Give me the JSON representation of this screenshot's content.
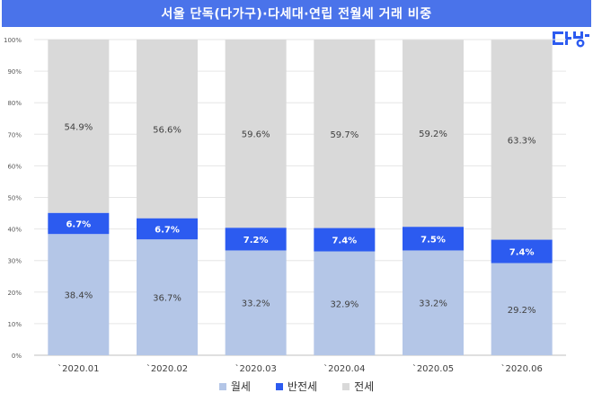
{
  "title": "서울 단독(다가구)·다세대·연립 전월세 거래 비중",
  "logo": {
    "text": "다방"
  },
  "colors": {
    "title_bg": "#4a73ea",
    "monthly": "#b4c6e7",
    "semi_jeonse": "#2c5bf0",
    "jeonse": "#d9d9d9"
  },
  "chart_data": {
    "type": "bar",
    "stacked": true,
    "percent": true,
    "categories": [
      "`2020.01",
      "`2020.02",
      "`2020.03",
      "`2020.04",
      "`2020.05",
      "`2020.06"
    ],
    "series": [
      {
        "name": "월세",
        "values": [
          38.4,
          36.7,
          33.2,
          32.9,
          33.2,
          29.2
        ],
        "labels": [
          "38.4%",
          "36.7%",
          "33.2%",
          "32.9%",
          "33.2%",
          "29.2%"
        ]
      },
      {
        "name": "반전세",
        "values": [
          6.7,
          6.7,
          7.2,
          7.4,
          7.5,
          7.4
        ],
        "labels": [
          "6.7%",
          "6.7%",
          "7.2%",
          "7.4%",
          "7.5%",
          "7.4%"
        ]
      },
      {
        "name": "전세",
        "values": [
          54.9,
          56.6,
          59.6,
          59.7,
          59.2,
          63.3
        ],
        "labels": [
          "54.9%",
          "56.6%",
          "59.6%",
          "59.7%",
          "59.2%",
          "63.3%"
        ]
      }
    ],
    "ylim": [
      0,
      100
    ],
    "yticks": [
      "0%",
      "10%",
      "20%",
      "30%",
      "40%",
      "50%",
      "60%",
      "70%",
      "80%",
      "90%",
      "100%"
    ],
    "grid": true,
    "legend": "bottom"
  }
}
